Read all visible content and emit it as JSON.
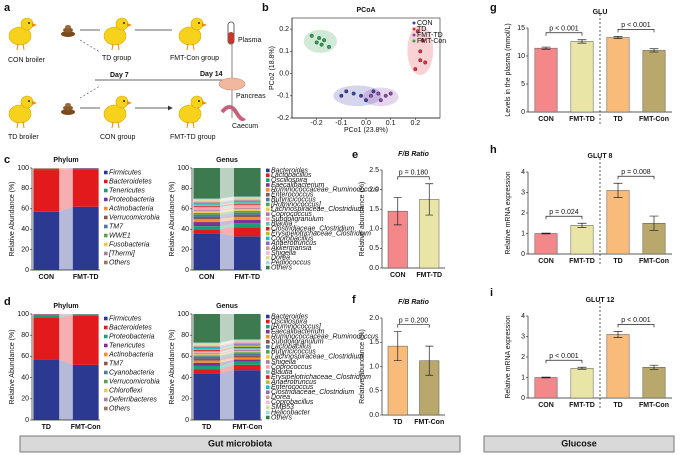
{
  "panel_labels": [
    "a",
    "b",
    "c",
    "d",
    "e",
    "f",
    "g",
    "h",
    "i"
  ],
  "diagram": {
    "con_broiler": "CON broiler",
    "td_group": "TD group",
    "fmt_con_group": "FMT-Con group",
    "day7": "Day 7",
    "day14": "Day 14",
    "plasma": "Plasma",
    "pancreas": "Pancreas",
    "caecum": "Caecum",
    "td_broiler": "TD broiler",
    "con_group": "CON group",
    "fmt_td_group": "FMT-TD group"
  },
  "sections": [
    "Gut microbiota",
    "Glucose"
  ],
  "chart_data": [
    {
      "type": "scatter",
      "title": "PCoA",
      "x_label": "PCo1 (23.8%)",
      "y_label": "PCo2 (18.8%)",
      "xlim": [
        -0.3,
        0.3
      ],
      "ylim": [
        -0.2,
        0.25
      ],
      "xticks": [
        -0.2,
        -0.1,
        {
          "value": 0,
          "label": "0.0"
        },
        0.1,
        0.2
      ],
      "yticks": [
        -0.2,
        -0.1,
        {
          "value": 0,
          "label": "0.0"
        },
        0.1,
        0.2
      ],
      "series": [
        {
          "name": "CON",
          "color": "#3f3fa8",
          "x": [
            -0.1,
            -0.08,
            -0.05,
            -0.02,
            0.0,
            0.03
          ],
          "values": [
            -0.1,
            -0.08,
            -0.09,
            -0.1,
            -0.12,
            -0.08
          ]
        },
        {
          "name": "TD",
          "color": "#e0303a",
          "x": [
            0.21,
            0.23,
            0.22,
            0.24,
            0.2,
            0.22
          ],
          "values": [
            0.19,
            0.15,
            0.1,
            0.05,
            0.02,
            0.06
          ]
        },
        {
          "name": "FMT-TD",
          "color": "#8e44ad",
          "x": [
            0.02,
            0.05,
            0.08,
            0.06,
            0.1
          ],
          "values": [
            -0.1,
            -0.09,
            -0.1,
            -0.12,
            -0.09
          ]
        },
        {
          "name": "FMT-Con",
          "color": "#2e9e4f",
          "x": [
            -0.22,
            -0.19,
            -0.17,
            -0.18,
            -0.15,
            -0.2
          ],
          "values": [
            0.17,
            0.16,
            0.15,
            0.13,
            0.12,
            0.14
          ]
        }
      ]
    },
    {
      "type": "stacked",
      "title": "Phylum",
      "y_label": "Relative Abundance (%)",
      "categories": [
        "CON",
        "FMT-TD"
      ],
      "ylim": [
        0,
        100
      ],
      "yticks": [
        0,
        20,
        40,
        60,
        80,
        100
      ],
      "series": [
        {
          "name": "Firmicutes",
          "color": "#2b3990",
          "values": [
            57,
            62
          ]
        },
        {
          "name": "Bacteroidetes",
          "color": "#e31a1c",
          "values": [
            41,
            36.5
          ]
        },
        {
          "name": "Tenericutes",
          "color": "#1b9e77",
          "values": [
            0.5,
            0.5
          ]
        },
        {
          "name": "Proteobacteria",
          "color": "#7b3294",
          "values": [
            0.8,
            0.5
          ]
        },
        {
          "name": "Actinobacteria",
          "color": "#f28e2b",
          "values": [
            0.2,
            0.2
          ]
        },
        {
          "name": "Verrucomicrobia",
          "color": "#8c564b",
          "values": [
            0.2,
            0.1
          ]
        },
        {
          "name": "TM7",
          "color": "#4e79a7",
          "values": [
            0.1,
            0.1
          ]
        },
        {
          "name": "WWE1",
          "color": "#59a14f",
          "values": [
            0.1,
            0.05
          ]
        },
        {
          "name": "Fusobacteria",
          "color": "#edc948",
          "values": [
            0.05,
            0.02
          ]
        },
        {
          "name": "[Thermi]",
          "color": "#b07aa1",
          "values": [
            0.03,
            0.02
          ]
        },
        {
          "name": "Others",
          "color": "#9c755f",
          "values": [
            0.02,
            0.01
          ]
        }
      ]
    },
    {
      "type": "stacked",
      "title": "Genus",
      "y_label": "Relative Abundance (%)",
      "categories": [
        "CON",
        "FMT-TD"
      ],
      "ylim": [
        0,
        100
      ],
      "yticks": [
        0,
        20,
        40,
        60,
        80,
        100
      ],
      "series": [
        {
          "name": "Bacteroides",
          "color": "#2b3990",
          "values": [
            36,
            33
          ]
        },
        {
          "name": "Lactobacillus",
          "color": "#e31a1c",
          "values": [
            4,
            9
          ]
        },
        {
          "name": "Oscillospira",
          "color": "#1b9e77",
          "values": [
            3,
            4
          ]
        },
        {
          "name": "Faecalibacterium",
          "color": "#7b3294",
          "values": [
            4,
            3
          ]
        },
        {
          "name": "Ruminococcaceae_Ruminococcus",
          "color": "#f28e2b",
          "values": [
            3,
            3
          ]
        },
        {
          "name": "Enterococcus",
          "color": "#8c564b",
          "values": [
            2,
            2
          ]
        },
        {
          "name": "Butyricicoccus",
          "color": "#4e79a7",
          "values": [
            2,
            2
          ]
        },
        {
          "name": "[Ruminococcus]",
          "color": "#59a14f",
          "values": [
            2,
            2
          ]
        },
        {
          "name": "Lachnospiraceae_Clostridium",
          "color": "#edc948",
          "values": [
            2,
            2
          ]
        },
        {
          "name": "Coprococcus",
          "color": "#b07aa1",
          "values": [
            1,
            1
          ]
        },
        {
          "name": "Subdoligranulum",
          "color": "#ff9da7",
          "values": [
            2,
            2
          ]
        },
        {
          "name": "Blautia",
          "color": "#76b7b2",
          "values": [
            1,
            1
          ]
        },
        {
          "name": "Clostridiaceae_Clostridium",
          "color": "#d62728",
          "values": [
            1,
            1
          ]
        },
        {
          "name": "Erysipelotrichaceae_Clostridium",
          "color": "#bcbd22",
          "values": [
            1,
            1
          ]
        },
        {
          "name": "Coprobacillus",
          "color": "#17becf",
          "values": [
            1,
            1
          ]
        },
        {
          "name": "Anaerotruncus",
          "color": "#9467bd",
          "values": [
            1,
            1
          ]
        },
        {
          "name": "Akkermansia",
          "color": "#c49c94",
          "values": [
            1,
            1
          ]
        },
        {
          "name": "Shigella",
          "color": "#f7b6d2",
          "values": [
            1,
            1
          ]
        },
        {
          "name": "Dorea",
          "color": "#dbdb8d",
          "values": [
            1,
            1
          ]
        },
        {
          "name": "Pediococcus",
          "color": "#9edae5",
          "values": [
            1,
            1
          ]
        },
        {
          "name": "Others",
          "color": "#3d7a4f",
          "values": [
            30,
            28
          ]
        }
      ]
    },
    {
      "type": "stacked",
      "title": "Phylum",
      "y_label": "Relative Abundance (%)",
      "categories": [
        "TD",
        "FMT-Con"
      ],
      "ylim": [
        0,
        100
      ],
      "yticks": [
        0,
        20,
        40,
        60,
        80,
        100
      ],
      "series": [
        {
          "name": "Firmicutes",
          "color": "#2b3990",
          "values": [
            57,
            52
          ]
        },
        {
          "name": "Bacteroidetes",
          "color": "#e31a1c",
          "values": [
            40,
            46.5
          ]
        },
        {
          "name": "Proteobacteria",
          "color": "#1b9e77",
          "values": [
            2,
            1
          ]
        },
        {
          "name": "Tenericutes",
          "color": "#7b3294",
          "values": [
            0.5,
            0.2
          ]
        },
        {
          "name": "Actinobacteria",
          "color": "#f28e2b",
          "values": [
            0.2,
            0.1
          ]
        },
        {
          "name": "TM7",
          "color": "#8c564b",
          "values": [
            0.1,
            0.1
          ]
        },
        {
          "name": "Cyanobacteria",
          "color": "#4e79a7",
          "values": [
            0.1,
            0.05
          ]
        },
        {
          "name": "Verrucomicrobia",
          "color": "#59a14f",
          "values": [
            0.05,
            0.02
          ]
        },
        {
          "name": "Chloroflexi",
          "color": "#edc948",
          "values": [
            0.02,
            0.01
          ]
        },
        {
          "name": "Deferribacteres",
          "color": "#b07aa1",
          "values": [
            0.02,
            0.01
          ]
        },
        {
          "name": "Others",
          "color": "#9c755f",
          "values": [
            0.01,
            0.01
          ]
        }
      ]
    },
    {
      "type": "stacked",
      "title": "Genus",
      "y_label": "Relative Abundance (%)",
      "categories": [
        "TD",
        "FMT-Con"
      ],
      "ylim": [
        0,
        100
      ],
      "yticks": [
        0,
        20,
        40,
        60,
        80,
        100
      ],
      "series": [
        {
          "name": "Bacteroides",
          "color": "#2b3990",
          "values": [
            44,
            47
          ]
        },
        {
          "name": "Oscillospira",
          "color": "#e31a1c",
          "values": [
            4,
            5
          ]
        },
        {
          "name": "[Ruminococcus]",
          "color": "#1b9e77",
          "values": [
            3,
            3
          ]
        },
        {
          "name": "Faecalibacterium",
          "color": "#7b3294",
          "values": [
            3,
            2
          ]
        },
        {
          "name": "Ruminococcaceae_Ruminococcus",
          "color": "#f28e2b",
          "values": [
            2,
            2
          ]
        },
        {
          "name": "Subdoligranulum",
          "color": "#8c564b",
          "values": [
            2,
            2
          ]
        },
        {
          "name": "Lactobacillus",
          "color": "#4e79a7",
          "values": [
            2,
            2
          ]
        },
        {
          "name": "Butyricicoccus",
          "color": "#59a14f",
          "values": [
            1,
            1
          ]
        },
        {
          "name": "Lachnospiraceae_Clostridium",
          "color": "#edc948",
          "values": [
            1,
            1
          ]
        },
        {
          "name": "Shigella",
          "color": "#b07aa1",
          "values": [
            1,
            1
          ]
        },
        {
          "name": "Coprococcus",
          "color": "#ff9da7",
          "values": [
            1,
            1
          ]
        },
        {
          "name": "Blautia",
          "color": "#76b7b2",
          "values": [
            1,
            1
          ]
        },
        {
          "name": "Erysipelotrichaceae_Clostridium",
          "color": "#d62728",
          "values": [
            1,
            1
          ]
        },
        {
          "name": "Anaerotruncus",
          "color": "#bcbd22",
          "values": [
            1,
            1
          ]
        },
        {
          "name": "Enterococcus",
          "color": "#17becf",
          "values": [
            1,
            1
          ]
        },
        {
          "name": "Clostridiaceae_Clostridium",
          "color": "#9467bd",
          "values": [
            1,
            1
          ]
        },
        {
          "name": "Dorea",
          "color": "#c49c94",
          "values": [
            1,
            1
          ]
        },
        {
          "name": "Coprobacillus",
          "color": "#f7b6d2",
          "values": [
            1,
            1
          ]
        },
        {
          "name": "SMB53",
          "color": "#dbdb8d",
          "values": [
            1,
            1
          ]
        },
        {
          "name": "Helicobacter",
          "color": "#9edae5",
          "values": [
            1,
            1
          ]
        },
        {
          "name": "Others",
          "color": "#3d7a4f",
          "values": [
            27,
            24
          ]
        }
      ]
    },
    {
      "type": "bar",
      "title": "F/B Ratio",
      "y_label": "Relative abundance (%)",
      "categories": [
        "CON",
        "FMT-TD"
      ],
      "values": [
        1.45,
        1.75
      ],
      "errors": [
        0.35,
        0.4
      ],
      "colors": [
        "#f4878a",
        "#e9e5a6"
      ],
      "ylim": [
        0,
        2.5
      ],
      "yticks": [
        {
          "value": 0,
          "label": "0.0"
        },
        0.5,
        {
          "value": 1,
          "label": "1.0"
        },
        1.5,
        {
          "value": 2,
          "label": "2.0"
        },
        2.5
      ],
      "annotations": [
        {
          "text": "p = 0.180",
          "pair": [
            0,
            1
          ]
        }
      ]
    },
    {
      "type": "bar",
      "title": "F/B Ratio",
      "y_label": "Relative abundance (%)",
      "categories": [
        "TD",
        "FMT-Con"
      ],
      "values": [
        1.42,
        1.12
      ],
      "errors": [
        0.3,
        0.3
      ],
      "colors": [
        "#f9bb7a",
        "#b9a86c"
      ],
      "ylim": [
        0,
        2
      ],
      "yticks": [
        {
          "value": 0,
          "label": "0.0"
        },
        0.5,
        {
          "value": 1,
          "label": "1.0"
        },
        1.5,
        {
          "value": 2,
          "label": "2.0"
        }
      ],
      "annotations": [
        {
          "text": "p = 0.200",
          "pair": [
            0,
            1
          ]
        }
      ]
    },
    {
      "type": "bar",
      "title": "GLU",
      "y_label": "Levels in the plasma (mmol/L)",
      "categories": [
        "CON",
        "FMT-TD",
        "TD",
        "FMT-Con"
      ],
      "values": [
        11.4,
        12.6,
        13.3,
        11.0
      ],
      "errors": [
        0.2,
        0.3,
        0.2,
        0.3
      ],
      "colors": [
        "#f4878a",
        "#e9e5a6",
        "#f9bb7a",
        "#b9a86c"
      ],
      "ylim": [
        0,
        15
      ],
      "yticks": [
        0,
        5,
        10,
        15
      ],
      "divider": true,
      "annotations": [
        {
          "text": "p < 0.001",
          "pair": [
            0,
            1
          ]
        },
        {
          "text": "p < 0.001",
          "pair": [
            2,
            3
          ]
        }
      ]
    },
    {
      "type": "bar",
      "title": "GLUT 8",
      "y_label": "Relative mRNA expression",
      "categories": [
        "CON",
        "FMT-TD",
        "TD",
        "FMT-Con"
      ],
      "values": [
        1.0,
        1.4,
        3.1,
        1.5
      ],
      "errors": [
        0.02,
        0.1,
        0.35,
        0.35
      ],
      "colors": [
        "#f4878a",
        "#e9e5a6",
        "#f9bb7a",
        "#b9a86c"
      ],
      "ylim": [
        0,
        4
      ],
      "yticks": [
        0,
        1,
        2,
        3,
        4
      ],
      "divider": true,
      "annotations": [
        {
          "text": "p = 0.024",
          "pair": [
            0,
            1
          ]
        },
        {
          "text": "p = 0.008",
          "pair": [
            2,
            3
          ]
        }
      ]
    },
    {
      "type": "bar",
      "title": "GLUT 12",
      "y_label": "Relative mRNA expression",
      "categories": [
        "CON",
        "FMT-TD",
        "TD",
        "FMT-Con"
      ],
      "values": [
        1.0,
        1.45,
        3.1,
        1.5
      ],
      "errors": [
        0.02,
        0.05,
        0.15,
        0.1
      ],
      "colors": [
        "#f4878a",
        "#e9e5a6",
        "#f9bb7a",
        "#b9a86c"
      ],
      "ylim": [
        0,
        4
      ],
      "yticks": [
        0,
        1,
        2,
        3,
        4
      ],
      "divider": true,
      "annotations": [
        {
          "text": "p < 0.001",
          "pair": [
            0,
            1
          ]
        },
        {
          "text": "p < 0.001",
          "pair": [
            2,
            3
          ]
        }
      ]
    }
  ]
}
